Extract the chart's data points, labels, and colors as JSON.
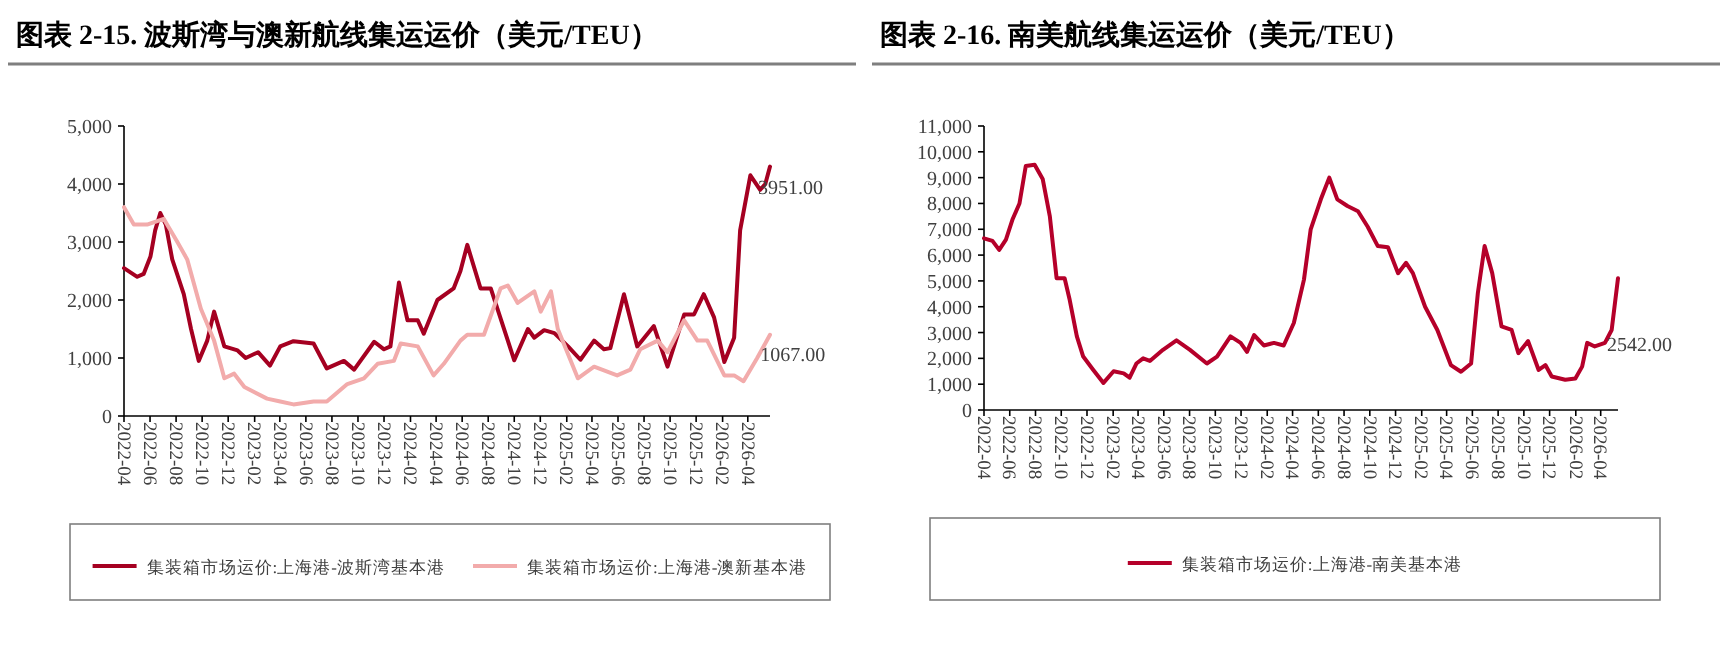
{
  "chart_data": [
    {
      "type": "line",
      "title": "图表 2-15. 波斯湾与澳新航线集运运价（美元/TEU）",
      "legend": "bottom",
      "grid": false,
      "marker": "none",
      "line_style": "solid",
      "xlim": [
        "2022-04-01",
        "2026-05-23"
      ],
      "xticks": [
        "2022-04",
        "2022-06",
        "2022-08",
        "2022-10",
        "2022-12",
        "2023-02",
        "2023-04",
        "2023-06",
        "2023-08",
        "2023-10",
        "2023-12",
        "2024-02",
        "2024-04",
        "2024-06",
        "2024-08",
        "2024-10",
        "2024-12",
        "2025-02",
        "2025-04",
        "2025-06",
        "2025-08",
        "2025-10",
        "2025-12",
        "2026-02",
        "2026-04"
      ],
      "ylim": [
        0,
        5000
      ],
      "yticks": [
        0,
        {
          "value": 1000,
          "label": "1,000"
        },
        {
          "value": 2000,
          "label": "2,000"
        },
        {
          "value": 3000,
          "label": "3,000"
        },
        {
          "value": 4000,
          "label": "4,000"
        },
        {
          "value": 5000,
          "label": "5,000"
        }
      ],
      "annotations": [
        {
          "text": "3951.00",
          "x": "2026-04-25",
          "y": 3951
        },
        {
          "text": "1067.00",
          "x": "2026-04-30",
          "y": 1067
        }
      ],
      "series": [
        {
          "name": "集装箱市场运价:上海港-波斯湾基本港",
          "color": "#a50021",
          "x": [
            "2022-04-01",
            "2022-05-02",
            "2022-05-17",
            "2022-06-02",
            "2022-06-13",
            "2022-06-25",
            "2022-07-08",
            "2022-07-23",
            "2022-08-19",
            "2022-09-05",
            "2022-09-23",
            "2022-10-13",
            "2022-10-29",
            "2022-11-22",
            "2022-12-23",
            "2023-01-11",
            "2023-02-09",
            "2023-03-09",
            "2023-04-02",
            "2023-05-03",
            "2023-06-19",
            "2023-07-20",
            "2023-08-29",
            "2023-09-22",
            "2023-11-08",
            "2023-12-01",
            "2023-12-16",
            "2024-01-05",
            "2024-01-25",
            "2024-02-18",
            "2024-03-03",
            "2024-04-04",
            "2024-05-12",
            "2024-05-28",
            "2024-06-13",
            "2024-07-14",
            "2024-08-07",
            "2024-09-16",
            "2024-10-01",
            "2024-11-02",
            "2024-11-17",
            "2024-12-10",
            "2025-01-03",
            "2025-02-04",
            "2025-03-05",
            "2025-04-06",
            "2025-04-29",
            "2025-05-14",
            "2025-06-15",
            "2025-07-16",
            "2025-08-24",
            "2025-09-25",
            "2025-11-03",
            "2025-11-26",
            "2025-12-19",
            "2026-01-12",
            "2026-02-05",
            "2026-02-28",
            "2026-03-14",
            "2026-04-07",
            "2026-04-30",
            "2026-05-12",
            "2026-05-23"
          ],
          "values": [
            2550,
            2400,
            2450,
            2750,
            3200,
            3500,
            3300,
            2700,
            2100,
            1500,
            950,
            1300,
            1800,
            1200,
            1130,
            1000,
            1100,
            870,
            1200,
            1290,
            1250,
            820,
            950,
            800,
            1280,
            1150,
            1200,
            2300,
            1650,
            1650,
            1420,
            2000,
            2200,
            2500,
            2950,
            2200,
            2200,
            1300,
            960,
            1500,
            1350,
            1480,
            1430,
            1200,
            970,
            1300,
            1150,
            1170,
            2100,
            1200,
            1550,
            850,
            1750,
            1750,
            2100,
            1700,
            930,
            1350,
            3200,
            4150,
            3900,
            4000,
            4300
          ]
        },
        {
          "name": "集装箱市场运价:上海港-澳新基本港",
          "color": "#f2abab",
          "x": [
            "2022-04-01",
            "2022-04-24",
            "2022-05-25",
            "2022-07-03",
            "2022-08-04",
            "2022-08-27",
            "2022-09-28",
            "2022-10-29",
            "2022-11-22",
            "2022-12-15",
            "2023-01-08",
            "2023-03-02",
            "2023-04-02",
            "2023-05-03",
            "2023-06-19",
            "2023-07-20",
            "2023-09-06",
            "2023-10-15",
            "2023-11-16",
            "2023-12-24",
            "2024-01-09",
            "2024-02-18",
            "2024-03-26",
            "2024-04-19",
            "2024-05-28",
            "2024-06-13",
            "2024-07-22",
            "2024-08-30",
            "2024-09-16",
            "2024-10-09",
            "2024-11-17",
            "2024-12-02",
            "2024-12-26",
            "2025-01-11",
            "2025-02-27",
            "2025-04-06",
            "2025-05-30",
            "2025-06-30",
            "2025-07-23",
            "2025-09-02",
            "2025-09-25",
            "2025-11-03",
            "2025-12-04",
            "2025-12-27",
            "2026-02-05",
            "2026-02-28",
            "2026-03-22",
            "2026-04-23",
            "2026-05-23"
          ],
          "values": [
            3600,
            3300,
            3300,
            3400,
            3000,
            2700,
            1850,
            1300,
            650,
            730,
            500,
            300,
            250,
            200,
            250,
            250,
            550,
            650,
            900,
            950,
            1250,
            1200,
            700,
            900,
            1300,
            1400,
            1400,
            2200,
            2250,
            1950,
            2150,
            1800,
            2150,
            1500,
            650,
            850,
            700,
            800,
            1150,
            1300,
            1100,
            1650,
            1300,
            1300,
            700,
            700,
            600,
            1000,
            1400
          ]
        }
      ]
    },
    {
      "type": "line",
      "title": "图表 2-16. 南美航线集运运价（美元/TEU）",
      "legend": "bottom",
      "grid": false,
      "marker": "none",
      "line_style": "solid",
      "xlim": [
        "2022-04-01",
        "2026-05-12"
      ],
      "xticks": [
        "2022-04",
        "2022-06",
        "2022-08",
        "2022-10",
        "2022-12",
        "2023-02",
        "2023-04",
        "2023-06",
        "2023-08",
        "2023-10",
        "2023-12",
        "2024-02",
        "2024-04",
        "2024-06",
        "2024-08",
        "2024-10",
        "2024-12",
        "2025-02",
        "2025-04",
        "2025-06",
        "2025-08",
        "2025-10",
        "2025-12",
        "2026-02",
        "2026-04"
      ],
      "ylim": [
        0,
        11000
      ],
      "yticks": [
        0,
        {
          "value": 1000,
          "label": "1,000"
        },
        {
          "value": 2000,
          "label": "2,000"
        },
        {
          "value": 3000,
          "label": "3,000"
        },
        {
          "value": 4000,
          "label": "4,000"
        },
        {
          "value": 5000,
          "label": "5,000"
        },
        {
          "value": 6000,
          "label": "6,000"
        },
        {
          "value": 7000,
          "label": "7,000"
        },
        {
          "value": 8000,
          "label": "8,000"
        },
        {
          "value": 9000,
          "label": "9,000"
        },
        {
          "value": 10000,
          "label": "10,000"
        },
        {
          "value": 11000,
          "label": "11,000"
        }
      ],
      "annotations": [
        {
          "text": "2542.00",
          "x": "2026-04-16",
          "y": 2542
        }
      ],
      "series": [
        {
          "name": "集装箱市场运价:上海港-南美基本港",
          "color": "#b5002a",
          "x": [
            "2022-04-01",
            "2022-04-21",
            "2022-05-07",
            "2022-05-23",
            "2022-06-08",
            "2022-06-24",
            "2022-07-09",
            "2022-07-30",
            "2022-08-18",
            "2022-09-04",
            "2022-09-20",
            "2022-10-09",
            "2022-10-21",
            "2022-11-07",
            "2022-11-22",
            "2022-12-16",
            "2023-01-09",
            "2023-02-02",
            "2023-02-26",
            "2023-03-12",
            "2023-03-28",
            "2023-04-13",
            "2023-04-29",
            "2023-05-30",
            "2023-07-01",
            "2023-08-02",
            "2023-09-11",
            "2023-10-05",
            "2023-11-06",
            "2023-11-30",
            "2023-12-15",
            "2024-01-01",
            "2024-01-24",
            "2024-02-17",
            "2024-03-11",
            "2024-04-04",
            "2024-04-28",
            "2024-05-14",
            "2024-06-07",
            "2024-06-27",
            "2024-07-16",
            "2024-08-09",
            "2024-09-03",
            "2024-09-26",
            "2024-10-20",
            "2024-11-13",
            "2024-12-07",
            "2024-12-26",
            "2025-01-11",
            "2025-02-09",
            "2025-03-10",
            "2025-04-11",
            "2025-05-05",
            "2025-05-29",
            "2025-06-14",
            "2025-06-30",
            "2025-07-18",
            "2025-08-09",
            "2025-09-02",
            "2025-09-18",
            "2025-10-11",
            "2025-11-05",
            "2025-11-21",
            "2025-12-06",
            "2026-01-07",
            "2026-01-31",
            "2026-02-16",
            "2026-02-28",
            "2026-03-18",
            "2026-04-11",
            "2026-04-27",
            "2026-05-12"
          ],
          "values": [
            6650,
            6550,
            6200,
            6600,
            7400,
            8000,
            9450,
            9500,
            8950,
            7500,
            5100,
            5100,
            4270,
            2850,
            2070,
            1550,
            1050,
            1500,
            1420,
            1250,
            1800,
            2000,
            1900,
            2330,
            2700,
            2330,
            1800,
            2070,
            2850,
            2600,
            2250,
            2900,
            2500,
            2600,
            2500,
            3370,
            5050,
            7000,
            8160,
            9000,
            8160,
            7900,
            7700,
            7100,
            6350,
            6300,
            5300,
            5700,
            5300,
            4000,
            3100,
            1740,
            1480,
            1800,
            4530,
            6350,
            5300,
            3240,
            3100,
            2200,
            2670,
            1550,
            1740,
            1300,
            1170,
            1220,
            1680,
            2600,
            2460,
            2600,
            3100,
            5100
          ]
        }
      ]
    }
  ]
}
